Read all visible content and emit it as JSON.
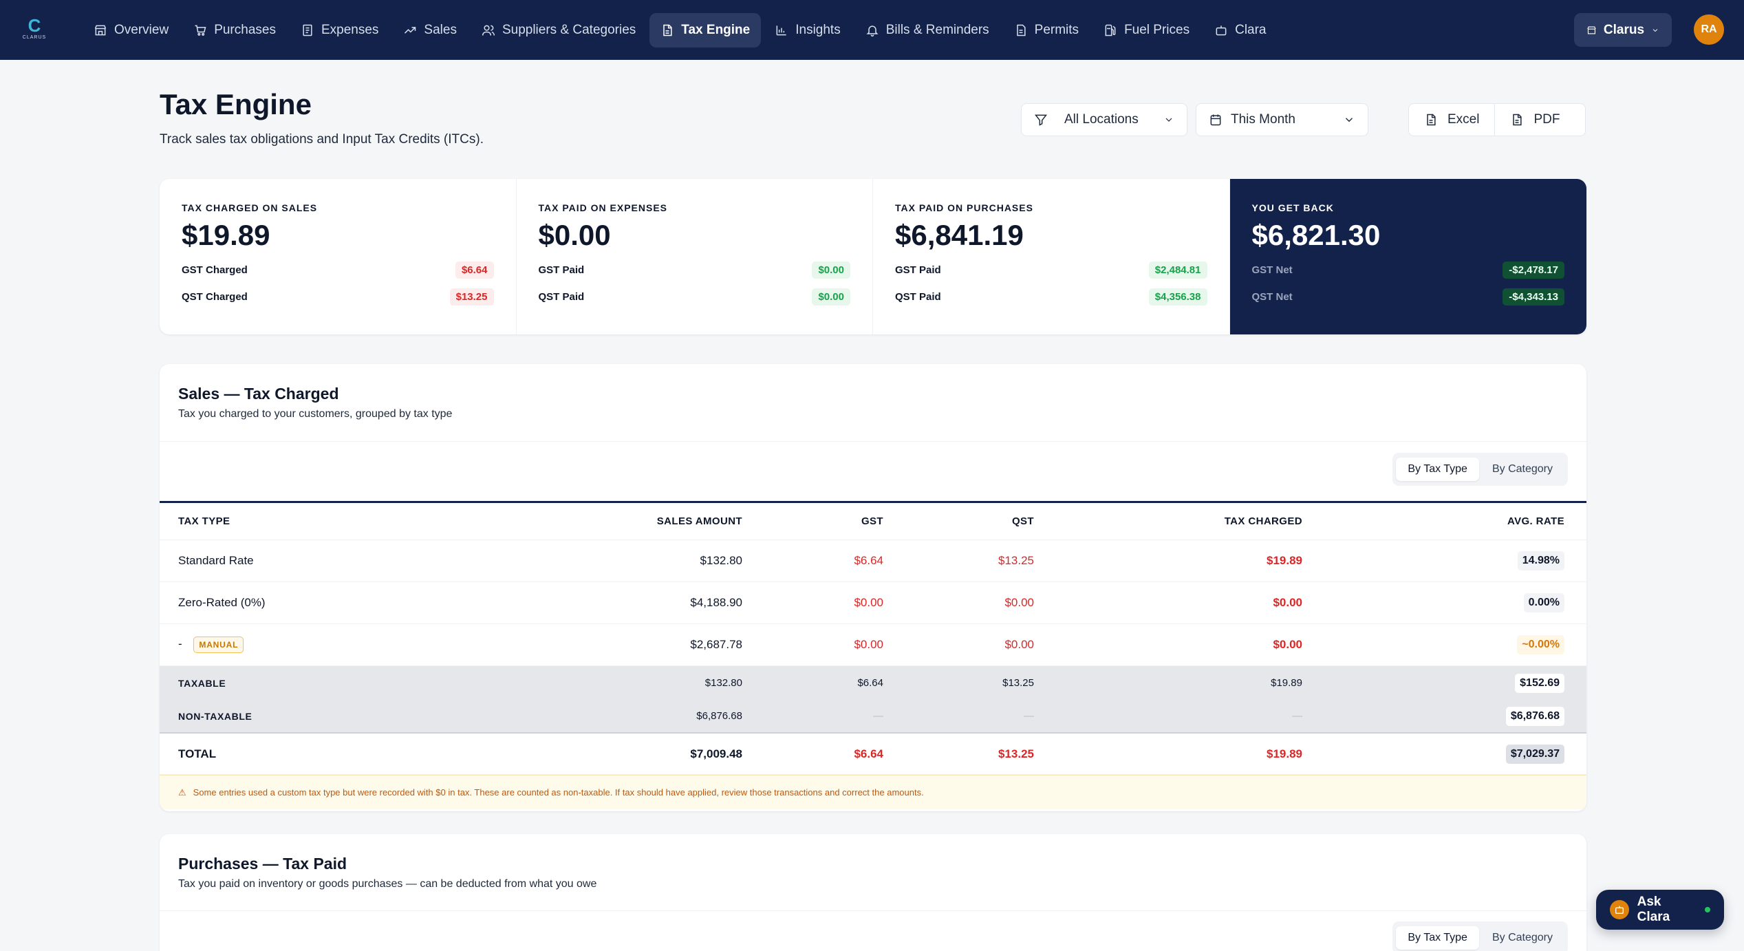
{
  "app": {
    "logo_text": "CLARUS"
  },
  "nav": {
    "items": [
      {
        "label": "Overview",
        "icon": "store-icon"
      },
      {
        "label": "Purchases",
        "icon": "cart-icon"
      },
      {
        "label": "Expenses",
        "icon": "receipt-icon"
      },
      {
        "label": "Sales",
        "icon": "trend-up-icon"
      },
      {
        "label": "Suppliers & Categories",
        "icon": "users-icon"
      },
      {
        "label": "Tax Engine",
        "icon": "document-icon",
        "active": true
      },
      {
        "label": "Insights",
        "icon": "bar-chart-icon"
      },
      {
        "label": "Bills & Reminders",
        "icon": "bell-icon"
      },
      {
        "label": "Permits",
        "icon": "file-icon"
      },
      {
        "label": "Fuel Prices",
        "icon": "fuel-icon"
      },
      {
        "label": "Clara",
        "icon": "bot-icon"
      }
    ],
    "location_switch": "Clarus",
    "avatar_initials": "RA"
  },
  "header": {
    "title": "Tax Engine",
    "subtitle": "Track sales tax obligations and Input Tax Credits (ITCs).",
    "location_filter": "All Locations",
    "period_filter": "This Month",
    "export_excel": "Excel",
    "export_pdf": "PDF"
  },
  "summary": [
    {
      "label": "TAX CHARGED ON SALES",
      "value": "$19.89",
      "rows": [
        {
          "label": "GST Charged",
          "value": "$6.64"
        },
        {
          "label": "QST Charged",
          "value": "$13.25"
        }
      ]
    },
    {
      "label": "TAX PAID ON EXPENSES",
      "value": "$0.00",
      "rows": [
        {
          "label": "GST Paid",
          "value": "$0.00"
        },
        {
          "label": "QST Paid",
          "value": "$0.00"
        }
      ]
    },
    {
      "label": "TAX PAID ON PURCHASES",
      "value": "$6,841.19",
      "rows": [
        {
          "label": "GST Paid",
          "value": "$2,484.81"
        },
        {
          "label": "QST Paid",
          "value": "$4,356.38"
        }
      ]
    },
    {
      "label": "YOU GET BACK",
      "value": "$6,821.30",
      "rows": [
        {
          "label": "GST Net",
          "value": "-$2,478.17"
        },
        {
          "label": "QST Net",
          "value": "-$4,343.13"
        }
      ]
    }
  ],
  "sales_section": {
    "title": "Sales — Tax Charged",
    "subtitle": "Tax you charged to your customers, grouped by tax type",
    "toggle": {
      "by_tax_type": "By Tax Type",
      "by_category": "By Category"
    },
    "columns": {
      "type": "TAX TYPE",
      "sales": "SALES AMOUNT",
      "gst": "GST",
      "qst": "QST",
      "tax": "TAX CHARGED",
      "rate": "AVG. RATE"
    },
    "rows": [
      {
        "type": "Standard Rate",
        "sales": "$132.80",
        "gst": "$6.64",
        "qst": "$13.25",
        "tax": "$19.89",
        "rate": "14.98%"
      },
      {
        "type": "Zero-Rated (0%)",
        "sales": "$4,188.90",
        "gst": "$0.00",
        "qst": "$0.00",
        "tax": "$0.00",
        "rate": "0.00%"
      },
      {
        "type": "-",
        "badge": "MANUAL",
        "sales": "$2,687.78",
        "gst": "$0.00",
        "qst": "$0.00",
        "tax": "$0.00",
        "rate": "~0.00%"
      }
    ],
    "taxable": {
      "label": "TAXABLE",
      "sales": "$132.80",
      "gst": "$6.64",
      "qst": "$13.25",
      "tax": "$19.89",
      "rate": "$152.69"
    },
    "non_taxable": {
      "label": "NON-TAXABLE",
      "sales": "$6,876.68",
      "gst": "—",
      "qst": "—",
      "tax": "—",
      "rate": "$6,876.68"
    },
    "total": {
      "label": "TOTAL",
      "sales": "$7,009.48",
      "gst": "$6.64",
      "qst": "$13.25",
      "tax": "$19.89",
      "rate": "$7,029.37"
    },
    "warning": "Some entries used a custom tax type but were recorded with $0 in tax. These are counted as non-taxable. If tax should have applied, review those transactions and correct the amounts."
  },
  "purchases_section": {
    "title": "Purchases — Tax Paid",
    "subtitle": "Tax you paid on inventory or goods purchases — can be deducted from what you owe",
    "toggle": {
      "by_tax_type": "By Tax Type",
      "by_category": "By Category"
    }
  },
  "assistant": {
    "label": "Ask Clara"
  },
  "colors": {
    "navy": "#13224a",
    "accent_orange": "#e0830c",
    "negative_red": "#dc2626",
    "positive_green": "#16a34a"
  }
}
